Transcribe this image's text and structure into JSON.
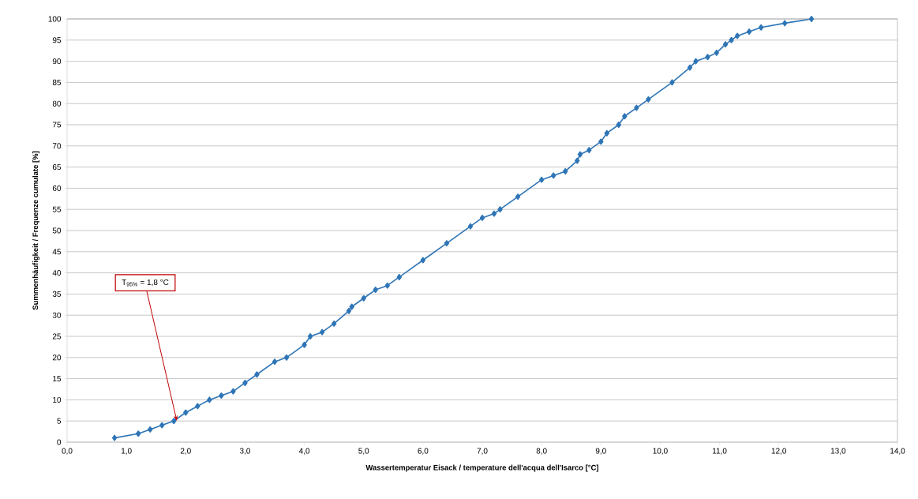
{
  "chart_data": {
    "type": "line",
    "xlabel": "Wassertemperatur Eisack /  temperature dell'acqua dell'Isarco [°C]",
    "ylabel": "Summenhäufigkeit /  Frequenze cumulate [%]",
    "xlim": [
      0,
      14
    ],
    "ylim": [
      0,
      100
    ],
    "xticks": [
      {
        "value": 0,
        "label": "0,0"
      },
      {
        "value": 1,
        "label": "1,0"
      },
      {
        "value": 2,
        "label": "2,0"
      },
      {
        "value": 3,
        "label": "3,0"
      },
      {
        "value": 4,
        "label": "4,0"
      },
      {
        "value": 5,
        "label": "5,0"
      },
      {
        "value": 6,
        "label": "6,0"
      },
      {
        "value": 7,
        "label": "7,0"
      },
      {
        "value": 8,
        "label": "8,0"
      },
      {
        "value": 9,
        "label": "9,0"
      },
      {
        "value": 10,
        "label": "10,0"
      },
      {
        "value": 11,
        "label": "11,0"
      },
      {
        "value": 12,
        "label": "12,0"
      },
      {
        "value": 13,
        "label": "13,0"
      },
      {
        "value": 14,
        "label": "14,0"
      }
    ],
    "yticks": [
      0,
      5,
      10,
      15,
      20,
      25,
      30,
      35,
      40,
      45,
      50,
      55,
      60,
      65,
      70,
      75,
      80,
      85,
      90,
      95,
      100
    ],
    "grid": "y",
    "marker": "diamond",
    "line_style": "solid",
    "series": [
      {
        "color": "#2e75b6",
        "x": [
          0.8,
          1.2,
          1.4,
          1.6,
          1.8,
          2.0,
          2.2,
          2.4,
          2.6,
          2.8,
          3.0,
          3.2,
          3.5,
          3.7,
          4.0,
          4.1,
          4.3,
          4.5,
          4.75,
          4.8,
          5.0,
          5.2,
          5.4,
          5.6,
          6.0,
          6.4,
          6.8,
          7.0,
          7.2,
          7.3,
          7.6,
          8.0,
          8.2,
          8.4,
          8.6,
          8.65,
          8.8,
          9.0,
          9.1,
          9.3,
          9.4,
          9.6,
          9.8,
          10.2,
          10.5,
          10.6,
          10.8,
          10.95,
          11.1,
          11.2,
          11.3,
          11.5,
          11.7,
          12.1,
          12.55
        ],
        "values": [
          1,
          2,
          3,
          4,
          5,
          7,
          8.5,
          10,
          11,
          12,
          14,
          16,
          19,
          20,
          23,
          25,
          26,
          28,
          31,
          32,
          34,
          36,
          37,
          39,
          43,
          47,
          51,
          53,
          54,
          55,
          58,
          62,
          63,
          64,
          66.5,
          68,
          69,
          71,
          73,
          75,
          77,
          79,
          81,
          85,
          88.5,
          90,
          91,
          92,
          94,
          95,
          96,
          97,
          98,
          99,
          100
        ]
      }
    ],
    "annotations": [
      {
        "text": "T$_{95%}$ = 1,8 °C",
        "x": 1.85,
        "y": 5
      }
    ]
  }
}
